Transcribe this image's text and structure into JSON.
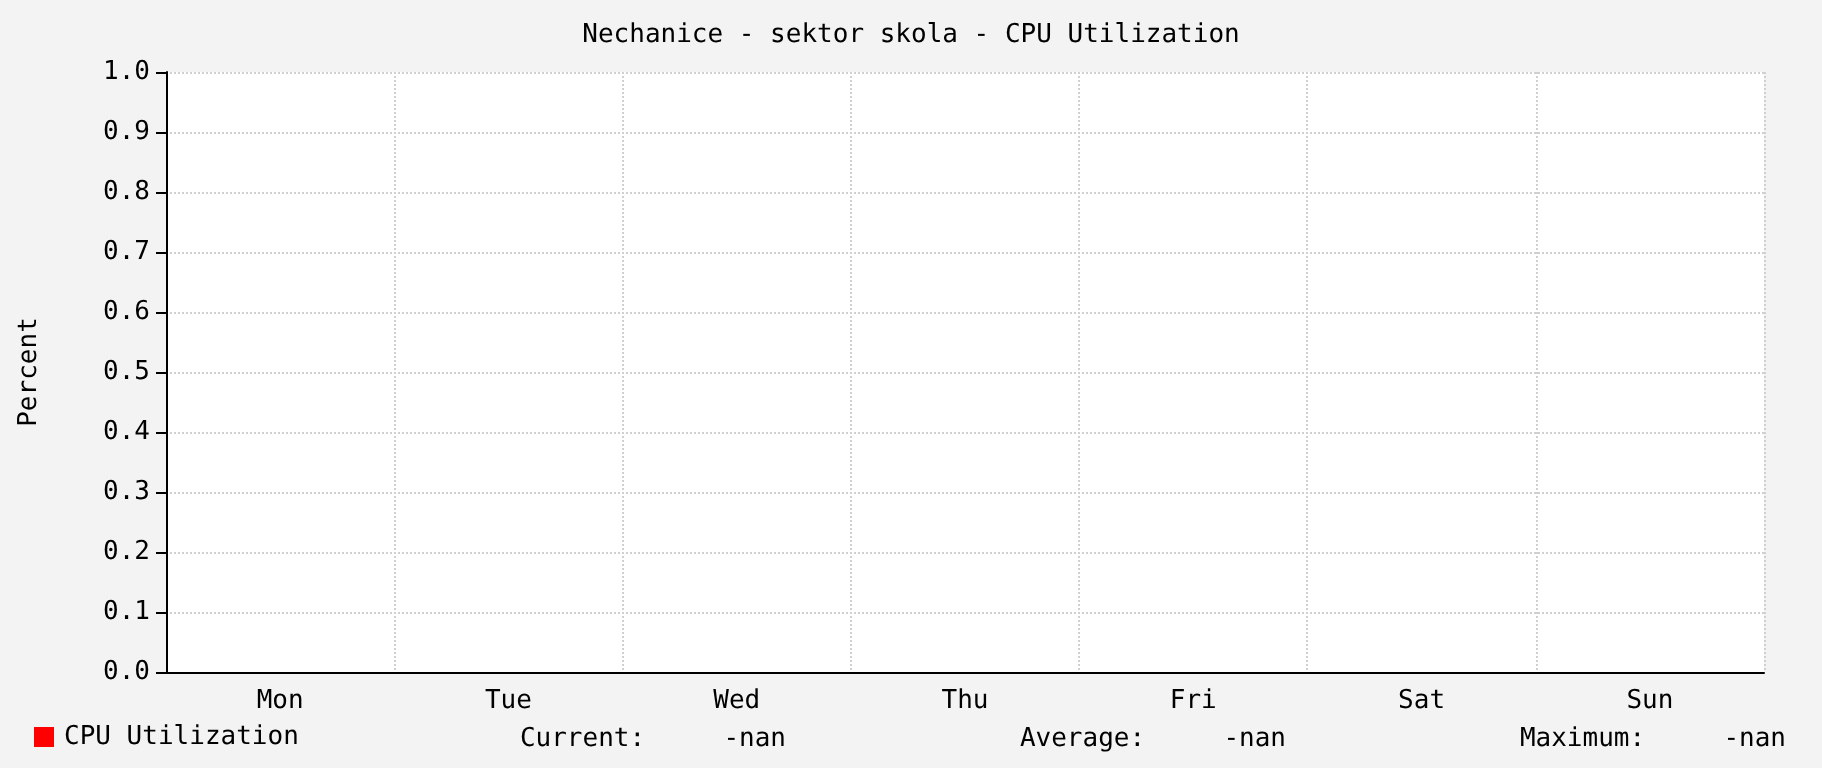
{
  "chart_data": {
    "type": "line",
    "title": "Nechanice - sektor skola - CPU Utilization",
    "ylabel": "Percent",
    "categories": [
      "Mon",
      "Tue",
      "Wed",
      "Thu",
      "Fri",
      "Sat",
      "Sun"
    ],
    "series": [
      {
        "name": "CPU Utilization",
        "color": "#ff0000",
        "values": [
          null,
          null,
          null,
          null,
          null,
          null,
          null
        ]
      }
    ],
    "ylim": [
      0,
      1
    ],
    "yticks": [
      {
        "value": 0,
        "label": "0.0"
      },
      {
        "value": 0.1,
        "label": "0.1"
      },
      {
        "value": 0.2,
        "label": "0.2"
      },
      {
        "value": 0.3,
        "label": "0.3"
      },
      {
        "value": 0.4,
        "label": "0.4"
      },
      {
        "value": 0.5,
        "label": "0.5"
      },
      {
        "value": 0.6,
        "label": "0.6"
      },
      {
        "value": 0.7,
        "label": "0.7"
      },
      {
        "value": 0.8,
        "label": "0.8"
      },
      {
        "value": 0.9,
        "label": "0.9"
      },
      {
        "value": 1,
        "label": "1.0"
      }
    ],
    "grid": true,
    "legend": "bottom left",
    "annotations": [
      "Current:     -nan",
      "Average:     -nan",
      "Maximum:     -nan"
    ]
  }
}
